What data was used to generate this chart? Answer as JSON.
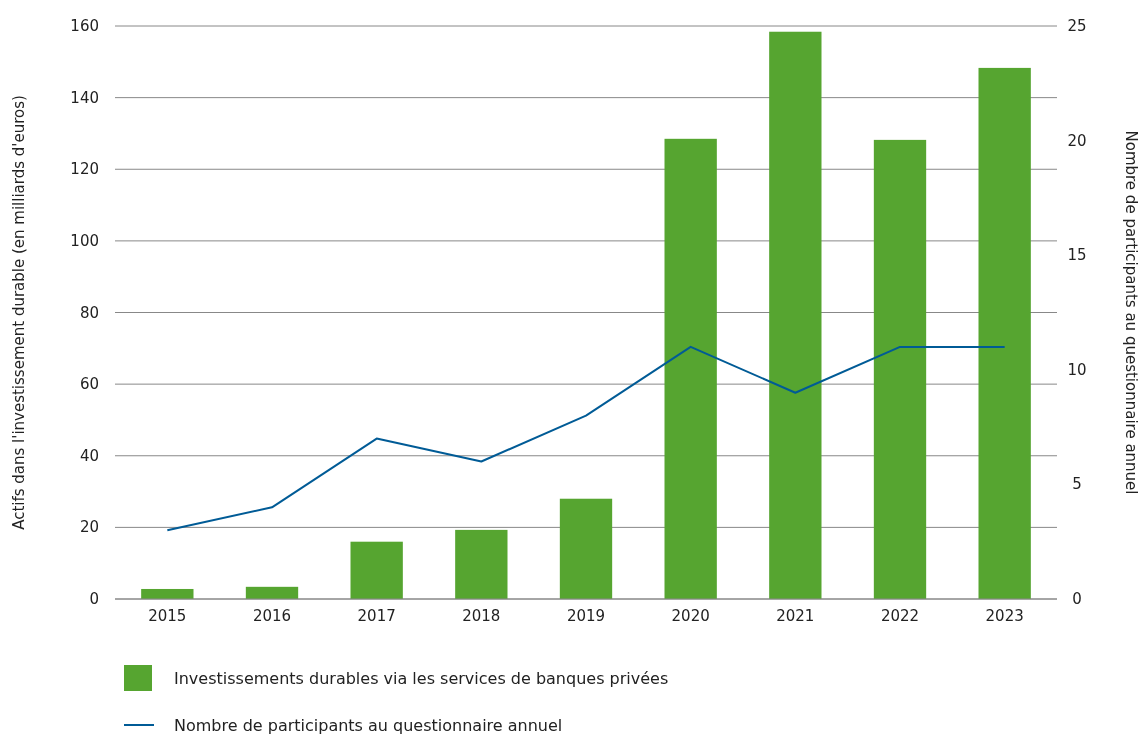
{
  "chart_data": {
    "type": "bar",
    "categories": [
      "2015",
      "2016",
      "2017",
      "2018",
      "2019",
      "2020",
      "2021",
      "2022",
      "2023"
    ],
    "ylabel": "Actifs dans l'investissement durable (en milliards d'euros)",
    "y2label": "Nombre de participants au questionnaire annuel",
    "series": [
      {
        "name": "Investissements durables via les services de banques privées",
        "color": "#56a530",
        "values": [
          2.8,
          3.4,
          16,
          19.3,
          28,
          128.5,
          158.4,
          128.2,
          148.3
        ]
      },
      {
        "name": "Nombre de participants au questionnaire annuel",
        "type": "line",
        "axis": "y2",
        "color": "#005b96",
        "values": [
          3,
          4,
          7,
          6,
          8,
          11,
          9,
          11,
          11
        ]
      }
    ],
    "ylim": [
      0,
      160
    ],
    "yticks": [
      0,
      20,
      40,
      60,
      80,
      100,
      120,
      140,
      160
    ],
    "y2lim": [
      0,
      25
    ],
    "y2ticks": [
      0,
      5,
      10,
      15,
      20,
      25
    ],
    "grid": "y",
    "legend": "bottom",
    "marker": "none"
  }
}
